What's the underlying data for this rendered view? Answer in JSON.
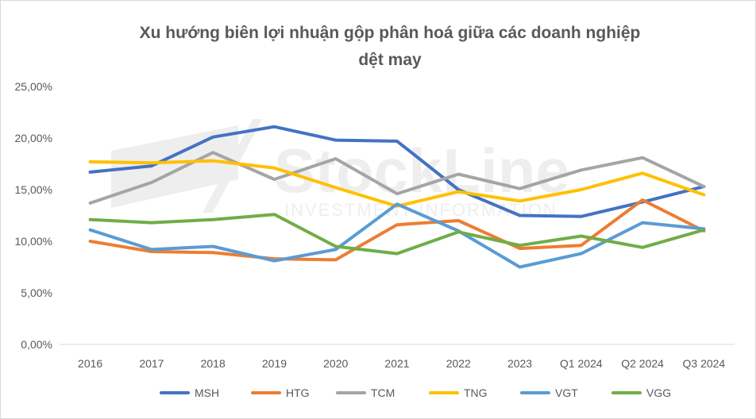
{
  "chart_data": {
    "type": "line",
    "title_line1": "Xu hướng biên lợi nhuận gộp phân hoá giữa các doanh nghiệp",
    "title_line2": "dệt may",
    "categories": [
      "2016",
      "2017",
      "2018",
      "2019",
      "2020",
      "2021",
      "2022",
      "2023",
      "Q1 2024",
      "Q2 2024",
      "Q3 2024"
    ],
    "y_ticks": [
      "0,00%",
      "5,00%",
      "10,00%",
      "15,00%",
      "20,00%",
      "25,00%"
    ],
    "ylim": [
      0,
      25
    ],
    "grid": false,
    "legend_position": "bottom",
    "series": [
      {
        "name": "MSH",
        "color": "#4472C4",
        "values": [
          16.7,
          17.3,
          20.1,
          21.1,
          19.8,
          19.7,
          15.0,
          12.5,
          12.4,
          13.8,
          15.3
        ]
      },
      {
        "name": "HTG",
        "color": "#ED7D31",
        "values": [
          10.0,
          9.0,
          8.9,
          8.3,
          8.2,
          11.6,
          12.0,
          9.3,
          9.6,
          14.0,
          11.0
        ]
      },
      {
        "name": "TCM",
        "color": "#A5A5A5",
        "values": [
          13.7,
          15.7,
          18.6,
          16.0,
          18.0,
          14.6,
          16.5,
          15.1,
          16.9,
          18.1,
          15.3
        ]
      },
      {
        "name": "TNG",
        "color": "#FFC000",
        "values": [
          17.7,
          17.6,
          17.8,
          17.1,
          15.2,
          13.4,
          14.8,
          13.9,
          15.0,
          16.6,
          14.5
        ]
      },
      {
        "name": "VGT",
        "color": "#5B9BD5",
        "values": [
          11.1,
          9.2,
          9.5,
          8.1,
          9.2,
          13.6,
          11.0,
          7.5,
          8.8,
          11.8,
          11.2
        ]
      },
      {
        "name": "VGG",
        "color": "#70AD47",
        "values": [
          12.1,
          11.8,
          12.1,
          12.6,
          9.5,
          8.8,
          10.9,
          9.6,
          10.5,
          9.4,
          11.1
        ]
      }
    ]
  },
  "watermark": {
    "brand": "StockLine",
    "tagline": "INVESTMENT INFORMATION"
  }
}
